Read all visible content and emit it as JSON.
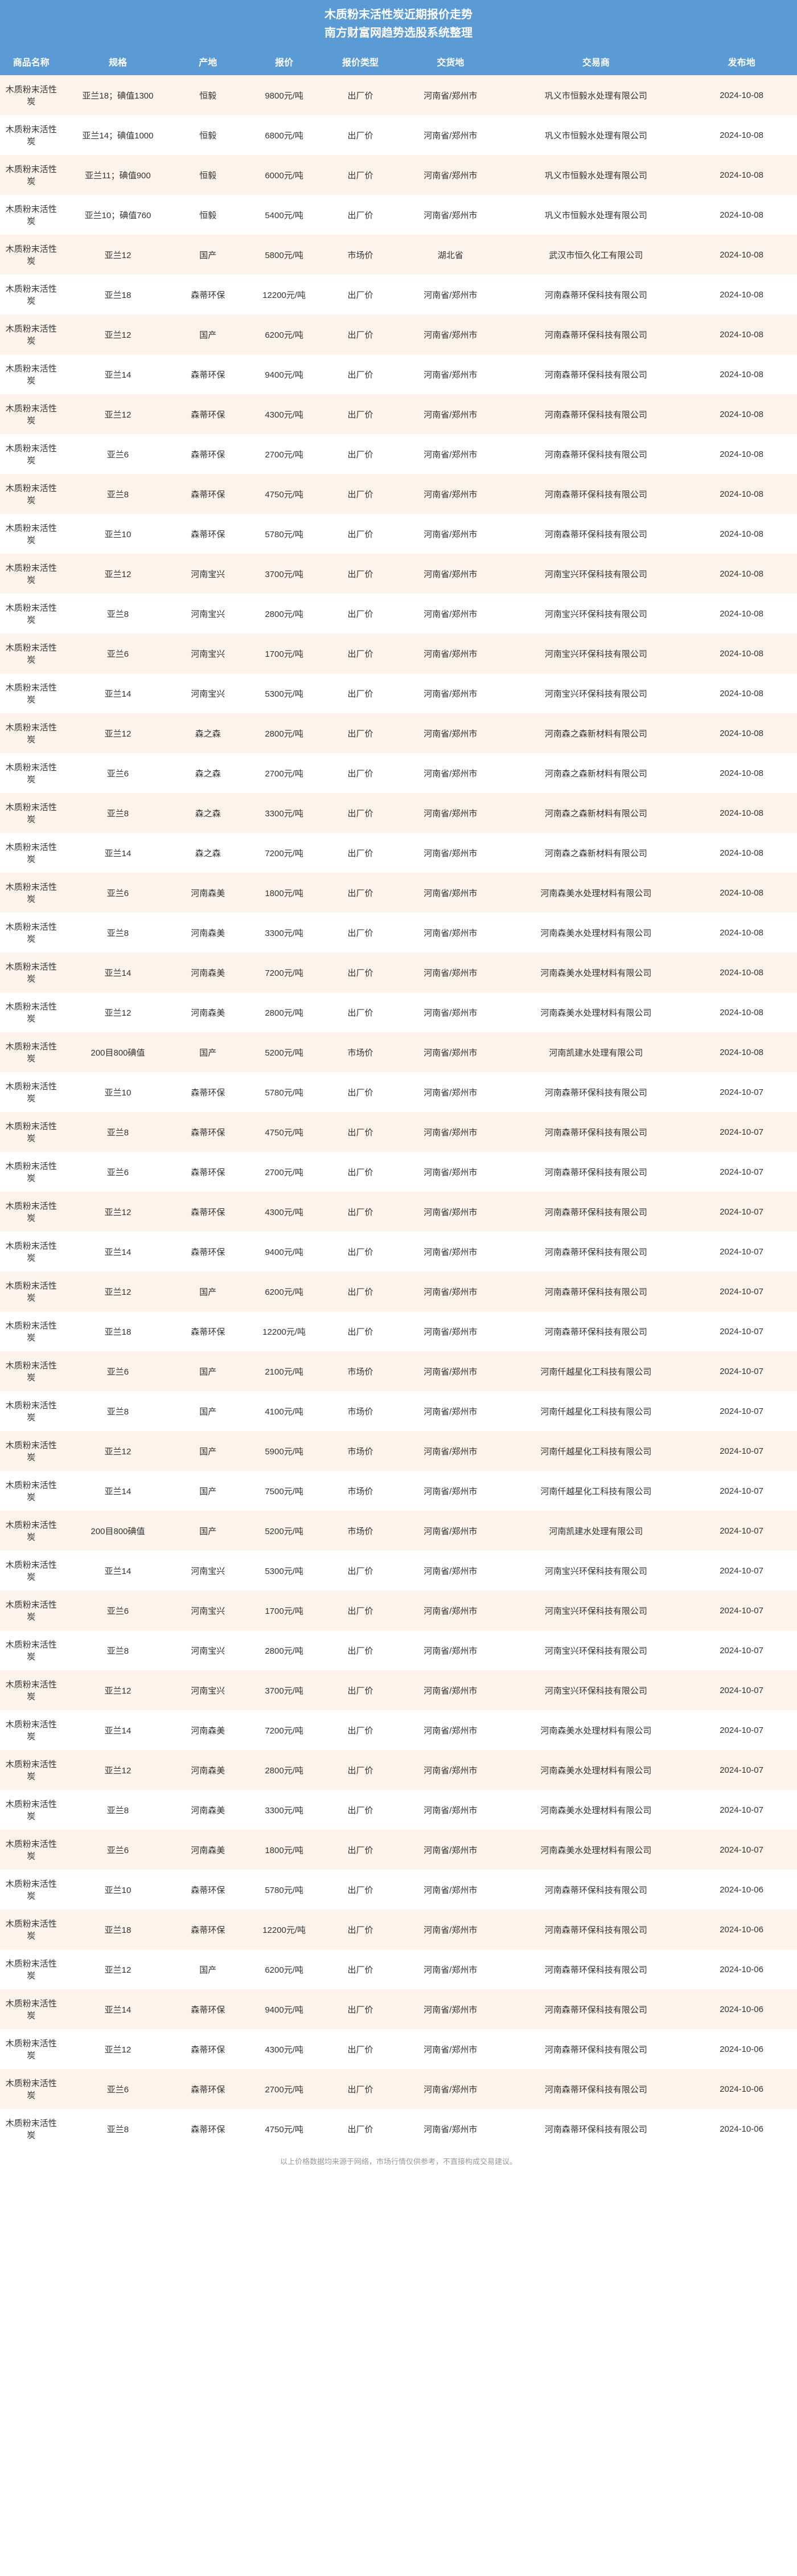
{
  "title_line1": "木质粉末活性炭近期报价走势",
  "title_line2": "南方财富网趋势选股系统整理",
  "columns": [
    "商品名称",
    "规格",
    "产地",
    "报价",
    "报价类型",
    "交货地",
    "交易商",
    "发布地"
  ],
  "footer": "以上价格数据均来源于网络，市场行情仅供参考，不直接构成交易建议。",
  "rows": [
    {
      "c": [
        "木质粉末活性炭",
        "亚兰18；碘值1300",
        "恒毅",
        "9800元/吨",
        "出厂价",
        "河南省/郑州市",
        "巩义市恒毅水处理有限公司",
        "2024-10-08"
      ]
    },
    {
      "c": [
        "木质粉末活性炭",
        "亚兰14；碘值1000",
        "恒毅",
        "6800元/吨",
        "出厂价",
        "河南省/郑州市",
        "巩义市恒毅水处理有限公司",
        "2024-10-08"
      ]
    },
    {
      "c": [
        "木质粉末活性炭",
        "亚兰11；碘值900",
        "恒毅",
        "6000元/吨",
        "出厂价",
        "河南省/郑州市",
        "巩义市恒毅水处理有限公司",
        "2024-10-08"
      ]
    },
    {
      "c": [
        "木质粉末活性炭",
        "亚兰10；碘值760",
        "恒毅",
        "5400元/吨",
        "出厂价",
        "河南省/郑州市",
        "巩义市恒毅水处理有限公司",
        "2024-10-08"
      ]
    },
    {
      "c": [
        "木质粉末活性炭",
        "亚兰12",
        "国产",
        "5800元/吨",
        "市场价",
        "湖北省",
        "武汉市恒久化工有限公司",
        "2024-10-08"
      ]
    },
    {
      "c": [
        "木质粉末活性炭",
        "亚兰18",
        "森蒂环保",
        "12200元/吨",
        "出厂价",
        "河南省/郑州市",
        "河南森蒂环保科技有限公司",
        "2024-10-08"
      ]
    },
    {
      "c": [
        "木质粉末活性炭",
        "亚兰12",
        "国产",
        "6200元/吨",
        "出厂价",
        "河南省/郑州市",
        "河南森蒂环保科技有限公司",
        "2024-10-08"
      ]
    },
    {
      "c": [
        "木质粉末活性炭",
        "亚兰14",
        "森蒂环保",
        "9400元/吨",
        "出厂价",
        "河南省/郑州市",
        "河南森蒂环保科技有限公司",
        "2024-10-08"
      ]
    },
    {
      "c": [
        "木质粉末活性炭",
        "亚兰12",
        "森蒂环保",
        "4300元/吨",
        "出厂价",
        "河南省/郑州市",
        "河南森蒂环保科技有限公司",
        "2024-10-08"
      ]
    },
    {
      "c": [
        "木质粉末活性炭",
        "亚兰6",
        "森蒂环保",
        "2700元/吨",
        "出厂价",
        "河南省/郑州市",
        "河南森蒂环保科技有限公司",
        "2024-10-08"
      ]
    },
    {
      "c": [
        "木质粉末活性炭",
        "亚兰8",
        "森蒂环保",
        "4750元/吨",
        "出厂价",
        "河南省/郑州市",
        "河南森蒂环保科技有限公司",
        "2024-10-08"
      ]
    },
    {
      "c": [
        "木质粉末活性炭",
        "亚兰10",
        "森蒂环保",
        "5780元/吨",
        "出厂价",
        "河南省/郑州市",
        "河南森蒂环保科技有限公司",
        "2024-10-08"
      ]
    },
    {
      "c": [
        "木质粉末活性炭",
        "亚兰12",
        "河南宝兴",
        "3700元/吨",
        "出厂价",
        "河南省/郑州市",
        "河南宝兴环保科技有限公司",
        "2024-10-08"
      ]
    },
    {
      "c": [
        "木质粉末活性炭",
        "亚兰8",
        "河南宝兴",
        "2800元/吨",
        "出厂价",
        "河南省/郑州市",
        "河南宝兴环保科技有限公司",
        "2024-10-08"
      ]
    },
    {
      "c": [
        "木质粉末活性炭",
        "亚兰6",
        "河南宝兴",
        "1700元/吨",
        "出厂价",
        "河南省/郑州市",
        "河南宝兴环保科技有限公司",
        "2024-10-08"
      ]
    },
    {
      "c": [
        "木质粉末活性炭",
        "亚兰14",
        "河南宝兴",
        "5300元/吨",
        "出厂价",
        "河南省/郑州市",
        "河南宝兴环保科技有限公司",
        "2024-10-08"
      ]
    },
    {
      "c": [
        "木质粉末活性炭",
        "亚兰12",
        "森之森",
        "2800元/吨",
        "出厂价",
        "河南省/郑州市",
        "河南森之森新材料有限公司",
        "2024-10-08"
      ]
    },
    {
      "c": [
        "木质粉末活性炭",
        "亚兰6",
        "森之森",
        "2700元/吨",
        "出厂价",
        "河南省/郑州市",
        "河南森之森新材料有限公司",
        "2024-10-08"
      ]
    },
    {
      "c": [
        "木质粉末活性炭",
        "亚兰8",
        "森之森",
        "3300元/吨",
        "出厂价",
        "河南省/郑州市",
        "河南森之森新材料有限公司",
        "2024-10-08"
      ]
    },
    {
      "c": [
        "木质粉末活性炭",
        "亚兰14",
        "森之森",
        "7200元/吨",
        "出厂价",
        "河南省/郑州市",
        "河南森之森新材料有限公司",
        "2024-10-08"
      ]
    },
    {
      "c": [
        "木质粉末活性炭",
        "亚兰6",
        "河南森美",
        "1800元/吨",
        "出厂价",
        "河南省/郑州市",
        "河南森美水处理材料有限公司",
        "2024-10-08"
      ]
    },
    {
      "c": [
        "木质粉末活性炭",
        "亚兰8",
        "河南森美",
        "3300元/吨",
        "出厂价",
        "河南省/郑州市",
        "河南森美水处理材料有限公司",
        "2024-10-08"
      ]
    },
    {
      "c": [
        "木质粉末活性炭",
        "亚兰14",
        "河南森美",
        "7200元/吨",
        "出厂价",
        "河南省/郑州市",
        "河南森美水处理材料有限公司",
        "2024-10-08"
      ]
    },
    {
      "c": [
        "木质粉末活性炭",
        "亚兰12",
        "河南森美",
        "2800元/吨",
        "出厂价",
        "河南省/郑州市",
        "河南森美水处理材料有限公司",
        "2024-10-08"
      ]
    },
    {
      "c": [
        "木质粉末活性炭",
        "200目800碘值",
        "国产",
        "5200元/吨",
        "市场价",
        "河南省/郑州市",
        "河南凯建水处理有限公司",
        "2024-10-08"
      ]
    },
    {
      "c": [
        "木质粉末活性炭",
        "亚兰10",
        "森蒂环保",
        "5780元/吨",
        "出厂价",
        "河南省/郑州市",
        "河南森蒂环保科技有限公司",
        "2024-10-07"
      ]
    },
    {
      "c": [
        "木质粉末活性炭",
        "亚兰8",
        "森蒂环保",
        "4750元/吨",
        "出厂价",
        "河南省/郑州市",
        "河南森蒂环保科技有限公司",
        "2024-10-07"
      ]
    },
    {
      "c": [
        "木质粉末活性炭",
        "亚兰6",
        "森蒂环保",
        "2700元/吨",
        "出厂价",
        "河南省/郑州市",
        "河南森蒂环保科技有限公司",
        "2024-10-07"
      ]
    },
    {
      "c": [
        "木质粉末活性炭",
        "亚兰12",
        "森蒂环保",
        "4300元/吨",
        "出厂价",
        "河南省/郑州市",
        "河南森蒂环保科技有限公司",
        "2024-10-07"
      ]
    },
    {
      "c": [
        "木质粉末活性炭",
        "亚兰14",
        "森蒂环保",
        "9400元/吨",
        "出厂价",
        "河南省/郑州市",
        "河南森蒂环保科技有限公司",
        "2024-10-07"
      ]
    },
    {
      "c": [
        "木质粉末活性炭",
        "亚兰12",
        "国产",
        "6200元/吨",
        "出厂价",
        "河南省/郑州市",
        "河南森蒂环保科技有限公司",
        "2024-10-07"
      ]
    },
    {
      "c": [
        "木质粉末活性炭",
        "亚兰18",
        "森蒂环保",
        "12200元/吨",
        "出厂价",
        "河南省/郑州市",
        "河南森蒂环保科技有限公司",
        "2024-10-07"
      ]
    },
    {
      "c": [
        "木质粉末活性炭",
        "亚兰6",
        "国产",
        "2100元/吨",
        "市场价",
        "河南省/郑州市",
        "河南仟越星化工科技有限公司",
        "2024-10-07"
      ]
    },
    {
      "c": [
        "木质粉末活性炭",
        "亚兰8",
        "国产",
        "4100元/吨",
        "市场价",
        "河南省/郑州市",
        "河南仟越星化工科技有限公司",
        "2024-10-07"
      ]
    },
    {
      "c": [
        "木质粉末活性炭",
        "亚兰12",
        "国产",
        "5900元/吨",
        "市场价",
        "河南省/郑州市",
        "河南仟越星化工科技有限公司",
        "2024-10-07"
      ]
    },
    {
      "c": [
        "木质粉末活性炭",
        "亚兰14",
        "国产",
        "7500元/吨",
        "市场价",
        "河南省/郑州市",
        "河南仟越星化工科技有限公司",
        "2024-10-07"
      ]
    },
    {
      "c": [
        "木质粉末活性炭",
        "200目800碘值",
        "国产",
        "5200元/吨",
        "市场价",
        "河南省/郑州市",
        "河南凯建水处理有限公司",
        "2024-10-07"
      ]
    },
    {
      "c": [
        "木质粉末活性炭",
        "亚兰14",
        "河南宝兴",
        "5300元/吨",
        "出厂价",
        "河南省/郑州市",
        "河南宝兴环保科技有限公司",
        "2024-10-07"
      ]
    },
    {
      "c": [
        "木质粉末活性炭",
        "亚兰6",
        "河南宝兴",
        "1700元/吨",
        "出厂价",
        "河南省/郑州市",
        "河南宝兴环保科技有限公司",
        "2024-10-07"
      ]
    },
    {
      "c": [
        "木质粉末活性炭",
        "亚兰8",
        "河南宝兴",
        "2800元/吨",
        "出厂价",
        "河南省/郑州市",
        "河南宝兴环保科技有限公司",
        "2024-10-07"
      ]
    },
    {
      "c": [
        "木质粉末活性炭",
        "亚兰12",
        "河南宝兴",
        "3700元/吨",
        "出厂价",
        "河南省/郑州市",
        "河南宝兴环保科技有限公司",
        "2024-10-07"
      ]
    },
    {
      "c": [
        "木质粉末活性炭",
        "亚兰14",
        "河南森美",
        "7200元/吨",
        "出厂价",
        "河南省/郑州市",
        "河南森美水处理材料有限公司",
        "2024-10-07"
      ]
    },
    {
      "c": [
        "木质粉末活性炭",
        "亚兰12",
        "河南森美",
        "2800元/吨",
        "出厂价",
        "河南省/郑州市",
        "河南森美水处理材料有限公司",
        "2024-10-07"
      ]
    },
    {
      "c": [
        "木质粉末活性炭",
        "亚兰8",
        "河南森美",
        "3300元/吨",
        "出厂价",
        "河南省/郑州市",
        "河南森美水处理材料有限公司",
        "2024-10-07"
      ]
    },
    {
      "c": [
        "木质粉末活性炭",
        "亚兰6",
        "河南森美",
        "1800元/吨",
        "出厂价",
        "河南省/郑州市",
        "河南森美水处理材料有限公司",
        "2024-10-07"
      ]
    },
    {
      "c": [
        "木质粉末活性炭",
        "亚兰10",
        "森蒂环保",
        "5780元/吨",
        "出厂价",
        "河南省/郑州市",
        "河南森蒂环保科技有限公司",
        "2024-10-06"
      ]
    },
    {
      "c": [
        "木质粉末活性炭",
        "亚兰18",
        "森蒂环保",
        "12200元/吨",
        "出厂价",
        "河南省/郑州市",
        "河南森蒂环保科技有限公司",
        "2024-10-06"
      ]
    },
    {
      "c": [
        "木质粉末活性炭",
        "亚兰12",
        "国产",
        "6200元/吨",
        "出厂价",
        "河南省/郑州市",
        "河南森蒂环保科技有限公司",
        "2024-10-06"
      ]
    },
    {
      "c": [
        "木质粉末活性炭",
        "亚兰14",
        "森蒂环保",
        "9400元/吨",
        "出厂价",
        "河南省/郑州市",
        "河南森蒂环保科技有限公司",
        "2024-10-06"
      ]
    },
    {
      "c": [
        "木质粉末活性炭",
        "亚兰12",
        "森蒂环保",
        "4300元/吨",
        "出厂价",
        "河南省/郑州市",
        "河南森蒂环保科技有限公司",
        "2024-10-06"
      ]
    },
    {
      "c": [
        "木质粉末活性炭",
        "亚兰6",
        "森蒂环保",
        "2700元/吨",
        "出厂价",
        "河南省/郑州市",
        "河南森蒂环保科技有限公司",
        "2024-10-06"
      ]
    },
    {
      "c": [
        "木质粉末活性炭",
        "亚兰8",
        "森蒂环保",
        "4750元/吨",
        "出厂价",
        "河南省/郑州市",
        "河南森蒂环保科技有限公司",
        "2024-10-06"
      ]
    }
  ]
}
